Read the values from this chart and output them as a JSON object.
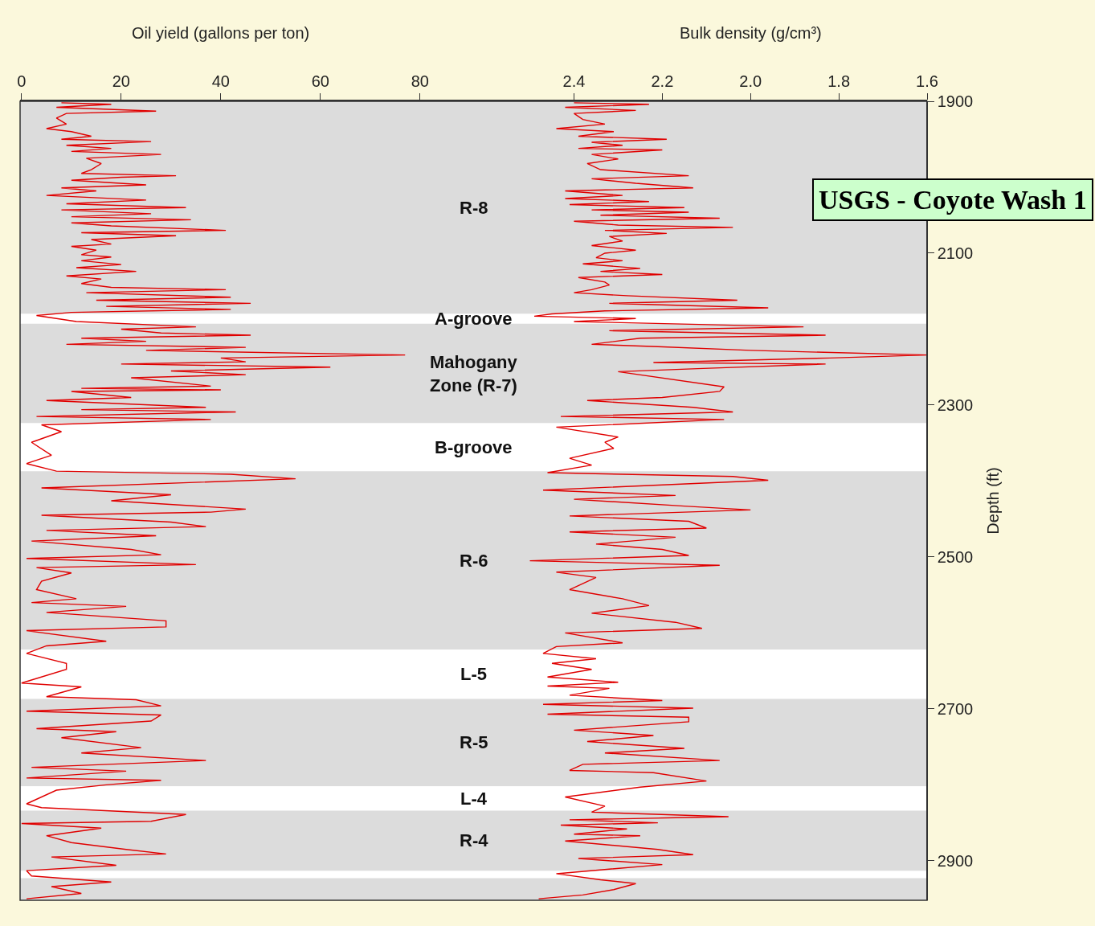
{
  "chart_data": {
    "type": "line",
    "orientation": "horizontal",
    "title": "USGS - Coyote Wash 1",
    "xlabel": "Oil yield (gallons per ton)",
    "x2label": "Bulk density (g/cm³)",
    "ylabel": "Depth (ft)",
    "xlim": [
      -0.3,
      181.8
    ],
    "xticks": [
      0,
      20,
      40,
      60,
      80
    ],
    "x2lim": [
      3.655,
      1.6
    ],
    "x2ticks": [
      2.4,
      2.2,
      {
        "value": 2.0,
        "label": "2.0"
      },
      1.8,
      1.6
    ],
    "ylim": [
      2952,
      1900
    ],
    "yticks": [
      1900,
      2100,
      2300,
      2500,
      2700,
      2900
    ],
    "grid": false,
    "marker": "none",
    "line_style": "solid",
    "bands": [
      {
        "axis": "y",
        "from": 1900,
        "to": 2180,
        "label": "R-8",
        "color": "#dcdcdc"
      },
      {
        "axis": "y",
        "from": 2180,
        "to": 2193,
        "label": "A-groove",
        "color": "#ffffff"
      },
      {
        "axis": "y",
        "from": 2193,
        "to": 2324,
        "label": "Mahogany Zone (R-7)",
        "color": "#dcdcdc"
      },
      {
        "axis": "y",
        "from": 2324,
        "to": 2387,
        "label": "B-groove",
        "color": "#ffffff"
      },
      {
        "axis": "y",
        "from": 2387,
        "to": 2622,
        "label": "R-6",
        "color": "#dcdcdc"
      },
      {
        "axis": "y",
        "from": 2622,
        "to": 2687,
        "label": "L-5",
        "color": "#ffffff"
      },
      {
        "axis": "y",
        "from": 2687,
        "to": 2802,
        "label": "R-5",
        "color": "#dcdcdc"
      },
      {
        "axis": "y",
        "from": 2802,
        "to": 2834,
        "label": "L-4",
        "color": "#ffffff"
      },
      {
        "axis": "y",
        "from": 2834,
        "to": 2913,
        "label": "R-4",
        "color": "#dcdcdc"
      },
      {
        "axis": "y",
        "from": 2923,
        "to": 2952,
        "label": null,
        "color": "#dcdcdc"
      }
    ],
    "series": [
      {
        "color": "#e00000",
        "x": [
          1902,
          1904,
          1908,
          1913,
          1916,
          1922,
          1930,
          1936,
          1940,
          1946,
          1950,
          1953,
          1958,
          1962,
          1966,
          1970,
          1975,
          1982,
          1990,
          1995,
          1998,
          2000,
          2004,
          2010,
          2014,
          2018,
          2024,
          2030,
          2035,
          2040,
          2043,
          2048,
          2052,
          2056,
          2060,
          2064,
          2070,
          2073,
          2077,
          2082,
          2088,
          2091,
          2096,
          2102,
          2105,
          2110,
          2115,
          2119,
          2124,
          2130,
          2134,
          2140,
          2145,
          2148,
          2152,
          2158,
          2162,
          2166,
          2170,
          2174,
          2178,
          2182,
          2186,
          2190,
          2197,
          2200,
          2205,
          2208,
          2212,
          2216,
          2220,
          2224,
          2228,
          2234,
          2238,
          2243,
          2246,
          2250,
          2255,
          2260,
          2264,
          2275,
          2278,
          2280,
          2282,
          2290,
          2294,
          2303,
          2306,
          2309,
          2315,
          2319,
          2326,
          2335,
          2349,
          2366,
          2377,
          2387,
          2391,
          2397,
          2409,
          2418,
          2426,
          2437,
          2441,
          2445,
          2454,
          2460,
          2465,
          2472,
          2479,
          2490,
          2497,
          2502,
          2510,
          2514,
          2521,
          2532,
          2543,
          2555,
          2560,
          2565,
          2573,
          2584,
          2592,
          2597,
          2611,
          2617,
          2627,
          2640,
          2648,
          2666,
          2671,
          2684,
          2688,
          2696,
          2703,
          2708,
          2716,
          2726,
          2730,
          2738,
          2751,
          2758,
          2768,
          2777,
          2782,
          2791,
          2794,
          2800,
          2807,
          2825,
          2830,
          2839,
          2848,
          2851,
          2857,
          2867,
          2876,
          2885,
          2891,
          2895,
          2906,
          2913,
          2920,
          2928,
          2934,
          2943,
          2950
        ],
        "values": [
          8,
          18,
          7,
          27,
          9,
          7,
          9,
          5,
          10,
          14,
          8,
          26,
          9,
          18,
          10,
          28,
          13,
          16,
          14,
          12,
          31,
          20,
          10,
          25,
          8,
          15,
          5,
          25,
          9,
          33,
          8,
          26,
          10,
          34,
          10,
          18,
          41,
          12,
          31,
          14,
          18,
          10,
          15,
          12,
          18,
          12,
          20,
          11,
          23,
          9,
          16,
          12,
          18,
          41,
          13,
          42,
          15,
          46,
          17,
          42,
          10,
          3,
          7,
          11,
          35,
          20,
          28,
          46,
          12,
          25,
          9,
          45,
          25,
          77,
          40,
          45,
          20,
          62,
          30,
          45,
          22,
          38,
          12,
          40,
          10,
          22,
          5,
          37,
          12,
          43,
          3,
          38,
          4,
          8,
          2,
          6,
          1,
          7,
          42,
          55,
          4,
          30,
          18,
          45,
          38,
          4,
          30,
          37,
          5,
          27,
          2,
          22,
          28,
          1,
          35,
          3,
          10,
          4,
          3,
          11,
          2,
          21,
          5,
          29,
          29,
          1,
          17,
          5,
          1,
          9,
          9,
          0,
          12,
          5,
          23,
          28,
          1,
          28,
          26,
          3,
          19,
          8,
          24,
          12,
          37,
          2,
          21,
          1,
          28,
          17,
          7,
          1,
          4,
          33,
          26,
          0,
          16,
          5,
          10,
          21,
          29,
          6,
          19,
          1,
          2,
          18,
          6,
          12,
          1
        ]
      },
      {
        "color": "#e00000",
        "axis": "x2",
        "x": [
          1902,
          1904,
          1908,
          1912,
          1916,
          1924,
          1930,
          1936,
          1940,
          1946,
          1950,
          1954,
          1958,
          1962,
          1964,
          1970,
          1976,
          1982,
          1990,
          1998,
          2002,
          2008,
          2014,
          2018,
          2024,
          2028,
          2032,
          2036,
          2040,
          2043,
          2046,
          2050,
          2054,
          2058,
          2063,
          2066,
          2070,
          2074,
          2078,
          2084,
          2090,
          2096,
          2100,
          2106,
          2110,
          2114,
          2120,
          2124,
          2128,
          2132,
          2138,
          2142,
          2148,
          2152,
          2156,
          2162,
          2166,
          2172,
          2176,
          2180,
          2183,
          2186,
          2190,
          2197,
          2202,
          2208,
          2212,
          2220,
          2223,
          2228,
          2234,
          2238,
          2244,
          2246,
          2252,
          2256,
          2276,
          2282,
          2290,
          2294,
          2303,
          2309,
          2315,
          2319,
          2329,
          2342,
          2349,
          2357,
          2370,
          2379,
          2389,
          2394,
          2399,
          2412,
          2419,
          2424,
          2433,
          2438,
          2446,
          2453,
          2462,
          2467,
          2474,
          2483,
          2490,
          2498,
          2505,
          2511,
          2520,
          2527,
          2543,
          2555,
          2564,
          2574,
          2586,
          2594,
          2600,
          2613,
          2618,
          2627,
          2634,
          2640,
          2648,
          2658,
          2665,
          2670,
          2673,
          2682,
          2689,
          2694,
          2699,
          2707,
          2711,
          2717,
          2728,
          2735,
          2743,
          2752,
          2758,
          2768,
          2773,
          2781,
          2784,
          2795,
          2803,
          2816,
          2828,
          2836,
          2842,
          2846,
          2850,
          2853,
          2858,
          2865,
          2867,
          2874,
          2885,
          2892,
          2897,
          2905,
          2917,
          2925,
          2930,
          2938,
          2945,
          2950
        ],
        "values": [
          2.4,
          2.23,
          2.42,
          2.26,
          2.4,
          2.38,
          2.33,
          2.44,
          2.31,
          2.39,
          2.19,
          2.36,
          2.29,
          2.39,
          2.2,
          2.36,
          2.3,
          2.37,
          2.34,
          2.14,
          2.36,
          2.26,
          2.13,
          2.42,
          2.29,
          2.42,
          2.23,
          2.41,
          2.15,
          2.36,
          2.14,
          2.34,
          2.07,
          2.4,
          2.3,
          2.04,
          2.33,
          2.19,
          2.32,
          2.29,
          2.36,
          2.26,
          2.33,
          2.35,
          2.29,
          2.38,
          2.25,
          2.34,
          2.2,
          2.39,
          2.33,
          2.32,
          2.36,
          2.4,
          2.28,
          2.03,
          2.32,
          1.96,
          2.33,
          2.45,
          2.49,
          2.26,
          2.4,
          1.88,
          2.32,
          1.83,
          2.25,
          2.36,
          2.21,
          2.0,
          1.6,
          1.82,
          2.22,
          1.83,
          2.12,
          2.3,
          2.06,
          2.07,
          2.2,
          2.37,
          2.13,
          2.04,
          2.43,
          2.06,
          2.44,
          2.3,
          2.33,
          2.31,
          2.41,
          2.36,
          2.46,
          2.04,
          1.96,
          2.47,
          2.17,
          2.4,
          2.15,
          2.0,
          2.41,
          2.14,
          2.1,
          2.41,
          2.17,
          2.35,
          2.2,
          2.14,
          2.5,
          2.07,
          2.44,
          2.35,
          2.41,
          2.29,
          2.23,
          2.36,
          2.17,
          2.11,
          2.42,
          2.29,
          2.44,
          2.47,
          2.35,
          2.45,
          2.36,
          2.46,
          2.3,
          2.46,
          2.32,
          2.41,
          2.2,
          2.47,
          2.13,
          2.46,
          2.14,
          2.14,
          2.4,
          2.22,
          2.37,
          2.15,
          2.33,
          2.07,
          2.38,
          2.41,
          2.22,
          2.1,
          2.25,
          2.42,
          2.33,
          2.36,
          2.05,
          2.41,
          2.21,
          2.43,
          2.28,
          2.4,
          2.25,
          2.42,
          2.21,
          2.13,
          2.39,
          2.2,
          2.44,
          2.34,
          2.26,
          2.31,
          2.38,
          2.48
        ]
      }
    ]
  }
}
